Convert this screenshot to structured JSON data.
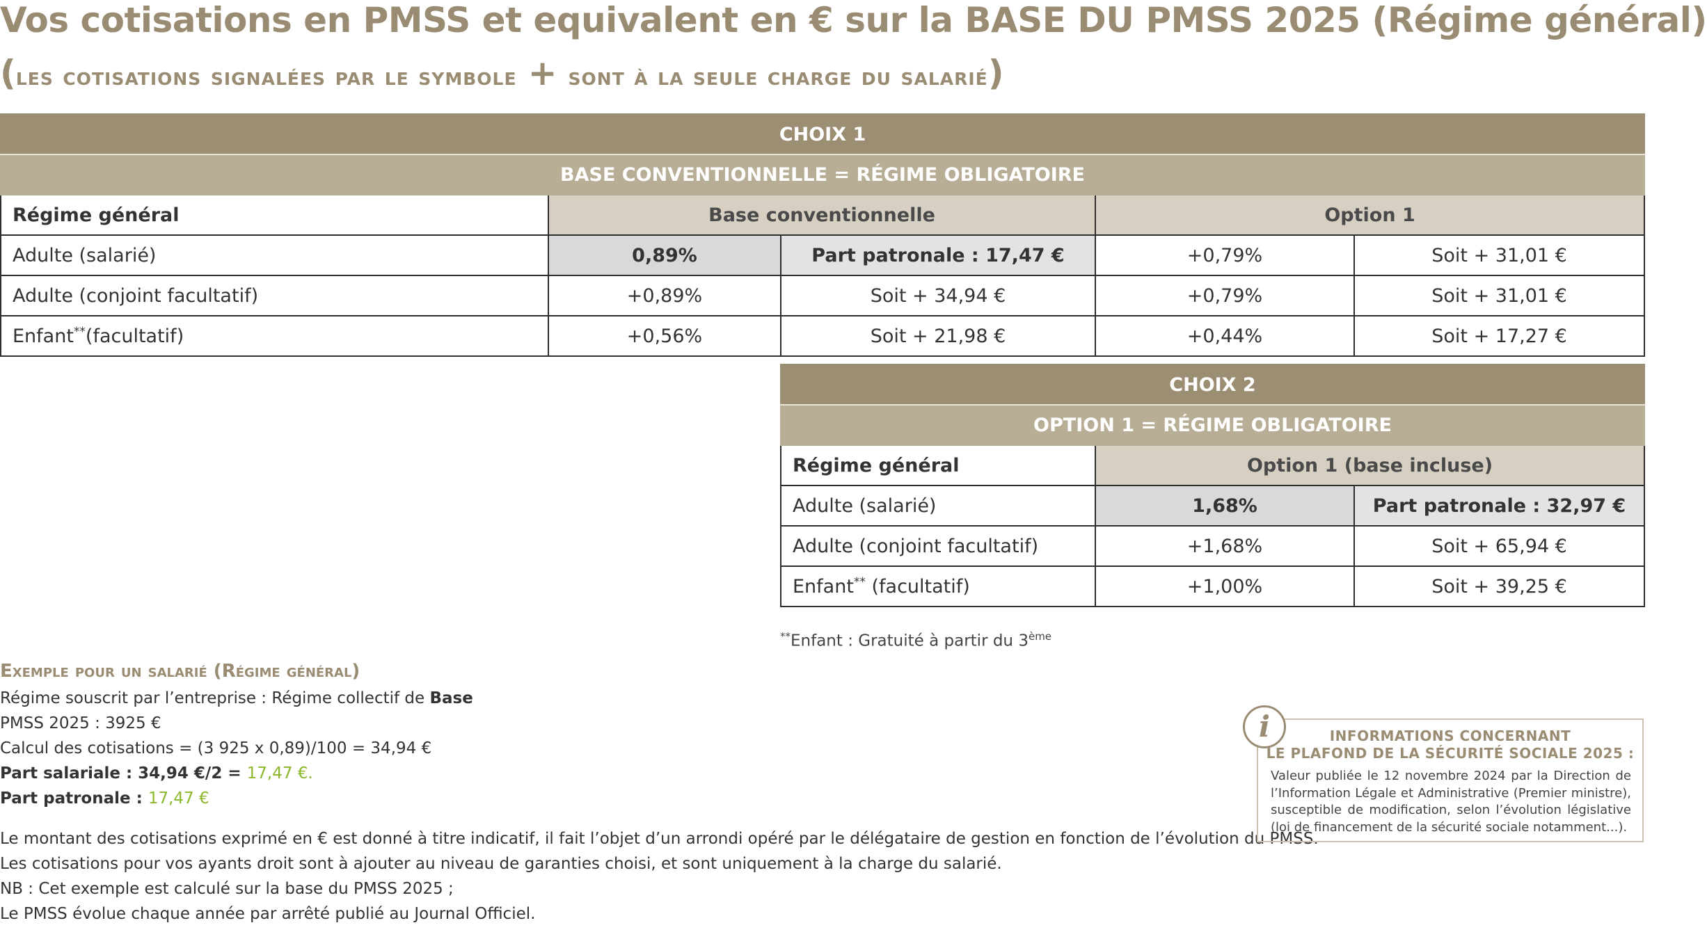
{
  "header": {
    "title": "Vos cotisations en PMSS et equivalent en € sur la BASE DU PMSS 2025 (Régime général)",
    "subtitle_open": "(",
    "subtitle_text": "les cotisations signalées par le symbole",
    "subtitle_plus": "+",
    "subtitle_text2": "sont à la seule charge du salarié",
    "subtitle_close": ")"
  },
  "choix1": {
    "title": "CHOIX 1",
    "subtitle": "BASE CONVENTIONNELLE = RÉGIME OBLIGATOIRE",
    "col_regime": "Régime général",
    "col_base": "Base conventionnelle",
    "col_option": "Option 1",
    "rows": [
      {
        "label": "Adulte (salarié)",
        "sup": "",
        "label_after": "",
        "base_rate": "0,89%",
        "base_amount": "Part patronale : 17,47 €",
        "opt_rate": "+0,79%",
        "opt_amount": "Soit + 31,01 €"
      },
      {
        "label": "Adulte (conjoint facultatif)",
        "sup": "",
        "label_after": "",
        "base_rate": "+0,89%",
        "base_amount": "Soit + 34,94 €",
        "opt_rate": "+0,79%",
        "opt_amount": "Soit + 31,01 €"
      },
      {
        "label": "Enfant",
        "sup": "**",
        "label_after": "(facultatif)",
        "base_rate": "+0,56%",
        "base_amount": "Soit + 21,98 €",
        "opt_rate": "+0,44%",
        "opt_amount": "Soit + 17,27 €"
      }
    ]
  },
  "choix2": {
    "title": "CHOIX 2",
    "subtitle": "OPTION 1 = RÉGIME OBLIGATOIRE",
    "col_regime": "Régime général",
    "col_option": "Option 1 (base incluse)",
    "rows": [
      {
        "label": "Adulte (salarié)",
        "sup": "",
        "label_after": "",
        "rate": "1,68%",
        "amount": "Part patronale : 32,97 €"
      },
      {
        "label": "Adulte (conjoint facultatif)",
        "sup": "",
        "label_after": "",
        "rate": "+1,68%",
        "amount": "Soit + 65,94 €"
      },
      {
        "label": "Enfant",
        "sup": "**",
        "label_after": " (facultatif)",
        "rate": "+1,00%",
        "amount": "Soit + 39,25 €"
      }
    ]
  },
  "footnote": {
    "stars": "**",
    "text": "Enfant : Gratuité à partir du 3",
    "sup": "ème"
  },
  "example": {
    "heading": "Exemple pour un salarié (Régime général)",
    "line1_text": "Régime souscrit par l’entreprise : Régime collectif de ",
    "line1_bold": "Base",
    "line2": "PMSS 2025 : 3925 €",
    "line3": "Calcul des cotisations = (3 925 x 0,89)/100 = 34,94 €",
    "line4_text": "Part salariale : 34,94 €/2 = ",
    "line4_value": "17,47 €.",
    "line5_text": "Part patronale : ",
    "line5_value": "17,47 €",
    "notes": [
      "Le montant des cotisations exprimé en € est donné à titre indicatif, il fait l’objet d’un arrondi opéré par le délégataire de gestion en fonction de l’évolution du PMSS.",
      "Les cotisations pour vos ayants droit sont à ajouter au niveau de garanties choisi, et sont uniquement à la charge du salarié.",
      "NB : Cet exemple est calculé sur la base du PMSS 2025 ;",
      "Le PMSS évolue chaque année par arrêté publié au Journal Officiel."
    ],
    "accent_color": "#8ab82a"
  },
  "info": {
    "icon": "info-icon",
    "icon_glyph": "i",
    "title_line1": "INFORMATIONS CONCERNANT",
    "title_line2": "LE PLAFOND DE LA SÉCURITÉ SOCIALE 2025 :",
    "body": "Valeur publiée le 12 novembre 2024 par la Direction de l’Information Légale et Administrative (Premier ministre), susceptible de modification, selon l’évolution législative (loi de financement de la sécurité sociale notamment...)."
  },
  "colors": {
    "brand": "#9a8c72",
    "header_dark": "#9c8e72",
    "header_mid": "#b8ad95",
    "header_light": "#d6cfc2",
    "cell_gray": "#d9d9d9"
  }
}
